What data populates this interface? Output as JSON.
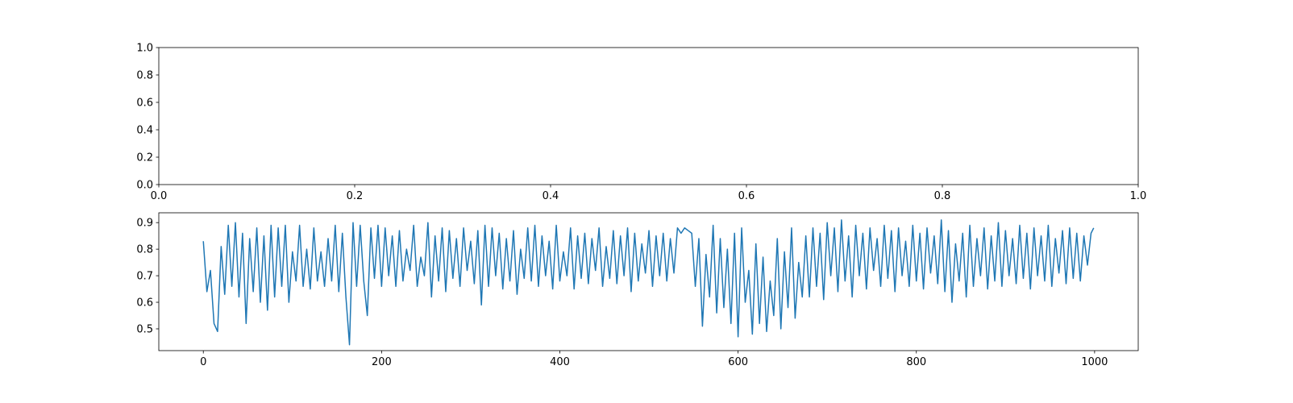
{
  "chart_data": [
    {
      "type": "empty",
      "xlim": [
        0,
        1
      ],
      "ylim": [
        0,
        1
      ],
      "xticks": [
        {
          "value": 0,
          "label": "0.0"
        },
        0.2,
        0.4,
        0.6,
        0.8,
        {
          "value": 1,
          "label": "1.0"
        }
      ],
      "yticks": [
        {
          "value": 0,
          "label": "0.0"
        },
        0.2,
        0.4,
        0.6,
        0.8,
        {
          "value": 1,
          "label": "1.0"
        }
      ]
    },
    {
      "type": "line",
      "xlim": [
        -49.95,
        1048.95
      ],
      "ylim": [
        0.418,
        0.937
      ],
      "xticks": [
        0,
        200,
        400,
        600,
        800,
        1000
      ],
      "yticks": [
        0.5,
        0.6,
        0.7,
        0.8,
        0.9
      ],
      "x": [
        0,
        4,
        8,
        12,
        16,
        20,
        24,
        28,
        32,
        36,
        40,
        44,
        48,
        52,
        56,
        60,
        64,
        68,
        72,
        76,
        80,
        84,
        88,
        92,
        96,
        100,
        104,
        108,
        112,
        116,
        120,
        124,
        128,
        132,
        136,
        140,
        144,
        148,
        152,
        156,
        160,
        164,
        168,
        172,
        176,
        180,
        184,
        188,
        192,
        196,
        200,
        204,
        208,
        212,
        216,
        220,
        224,
        228,
        232,
        236,
        240,
        244,
        248,
        252,
        256,
        260,
        264,
        268,
        272,
        276,
        280,
        284,
        288,
        292,
        296,
        300,
        304,
        308,
        312,
        316,
        320,
        324,
        328,
        332,
        336,
        340,
        344,
        348,
        352,
        356,
        360,
        364,
        368,
        372,
        376,
        380,
        384,
        388,
        392,
        396,
        400,
        404,
        408,
        412,
        416,
        420,
        424,
        428,
        432,
        436,
        440,
        444,
        448,
        452,
        456,
        460,
        464,
        468,
        472,
        476,
        480,
        484,
        488,
        492,
        496,
        500,
        504,
        508,
        512,
        516,
        520,
        524,
        528,
        532,
        536,
        540,
        544,
        548,
        552,
        556,
        560,
        564,
        568,
        572,
        576,
        580,
        584,
        588,
        592,
        596,
        600,
        604,
        608,
        612,
        616,
        620,
        624,
        628,
        632,
        636,
        640,
        644,
        648,
        652,
        656,
        660,
        664,
        668,
        672,
        676,
        680,
        684,
        688,
        692,
        696,
        700,
        704,
        708,
        712,
        716,
        720,
        724,
        728,
        732,
        736,
        740,
        744,
        748,
        752,
        756,
        760,
        764,
        768,
        772,
        776,
        780,
        784,
        788,
        792,
        796,
        800,
        804,
        808,
        812,
        816,
        820,
        824,
        828,
        832,
        836,
        840,
        844,
        848,
        852,
        856,
        860,
        864,
        868,
        872,
        876,
        880,
        884,
        888,
        892,
        896,
        900,
        904,
        908,
        912,
        916,
        920,
        924,
        928,
        932,
        936,
        940,
        944,
        948,
        952,
        956,
        960,
        964,
        968,
        972,
        976,
        980,
        984,
        988,
        992,
        996,
        999
      ],
      "series": [
        {
          "color": "#1f77b4",
          "values": [
            0.83,
            0.64,
            0.72,
            0.52,
            0.49,
            0.81,
            0.63,
            0.89,
            0.66,
            0.9,
            0.62,
            0.86,
            0.52,
            0.84,
            0.64,
            0.88,
            0.6,
            0.85,
            0.57,
            0.89,
            0.62,
            0.88,
            0.66,
            0.89,
            0.6,
            0.79,
            0.68,
            0.89,
            0.66,
            0.8,
            0.65,
            0.88,
            0.68,
            0.79,
            0.66,
            0.84,
            0.68,
            0.89,
            0.64,
            0.86,
            0.62,
            0.44,
            0.9,
            0.66,
            0.89,
            0.68,
            0.55,
            0.88,
            0.69,
            0.89,
            0.66,
            0.88,
            0.7,
            0.85,
            0.66,
            0.87,
            0.68,
            0.8,
            0.72,
            0.89,
            0.66,
            0.77,
            0.7,
            0.9,
            0.62,
            0.85,
            0.68,
            0.88,
            0.64,
            0.87,
            0.69,
            0.84,
            0.66,
            0.88,
            0.72,
            0.83,
            0.67,
            0.87,
            0.59,
            0.89,
            0.66,
            0.88,
            0.7,
            0.86,
            0.65,
            0.84,
            0.68,
            0.87,
            0.63,
            0.8,
            0.69,
            0.88,
            0.68,
            0.89,
            0.66,
            0.85,
            0.7,
            0.83,
            0.65,
            0.89,
            0.68,
            0.79,
            0.7,
            0.88,
            0.65,
            0.85,
            0.69,
            0.86,
            0.67,
            0.84,
            0.72,
            0.88,
            0.66,
            0.81,
            0.69,
            0.87,
            0.67,
            0.85,
            0.7,
            0.88,
            0.64,
            0.86,
            0.68,
            0.82,
            0.71,
            0.87,
            0.66,
            0.85,
            0.7,
            0.86,
            0.68,
            0.84,
            0.71,
            0.88,
            0.86,
            0.88,
            0.87,
            0.86,
            0.66,
            0.84,
            0.51,
            0.78,
            0.62,
            0.89,
            0.56,
            0.84,
            0.58,
            0.8,
            0.52,
            0.86,
            0.47,
            0.88,
            0.6,
            0.72,
            0.48,
            0.82,
            0.52,
            0.77,
            0.49,
            0.68,
            0.55,
            0.84,
            0.5,
            0.79,
            0.58,
            0.88,
            0.54,
            0.75,
            0.62,
            0.85,
            0.62,
            0.88,
            0.66,
            0.86,
            0.61,
            0.9,
            0.7,
            0.88,
            0.64,
            0.91,
            0.68,
            0.85,
            0.62,
            0.89,
            0.7,
            0.86,
            0.65,
            0.88,
            0.72,
            0.84,
            0.66,
            0.89,
            0.69,
            0.87,
            0.64,
            0.88,
            0.7,
            0.83,
            0.66,
            0.89,
            0.68,
            0.86,
            0.65,
            0.88,
            0.71,
            0.85,
            0.67,
            0.91,
            0.64,
            0.87,
            0.6,
            0.82,
            0.68,
            0.86,
            0.62,
            0.89,
            0.66,
            0.84,
            0.7,
            0.88,
            0.65,
            0.85,
            0.68,
            0.9,
            0.66,
            0.87,
            0.7,
            0.84,
            0.67,
            0.89,
            0.69,
            0.86,
            0.65,
            0.88,
            0.7,
            0.85,
            0.68,
            0.89,
            0.66,
            0.84,
            0.71,
            0.87,
            0.67,
            0.88,
            0.69,
            0.86,
            0.68,
            0.85,
            0.74,
            0.86,
            0.88
          ]
        }
      ]
    }
  ]
}
